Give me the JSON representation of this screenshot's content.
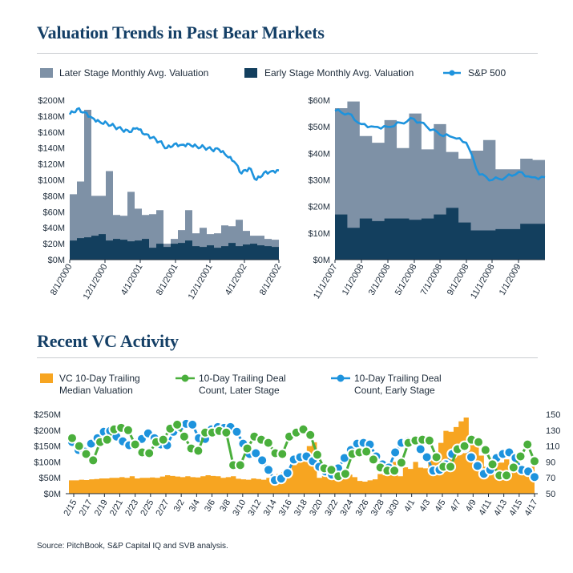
{
  "header": {
    "title1": "Valuation Trends in Past Bear Markets",
    "title2": "Recent VC Activity"
  },
  "legend1": {
    "later": "Later Stage Monthly Avg. Valuation",
    "early": "Early Stage Monthly Avg. Valuation",
    "sp": "S&P 500"
  },
  "legend2": {
    "median": "VC 10-Day Trailing Median Valuation",
    "later": "10-Day Trailing Deal Count, Later Stage",
    "early": "10-Day Trailing Deal Count, Early Stage"
  },
  "colors": {
    "later_stage": "#7e91a6",
    "early_stage": "#133f5e",
    "sp500": "#1d93dd",
    "vc_median": "#f7a521",
    "green": "#4aaf3c",
    "blue": "#1d93dd",
    "title": "#143f66"
  },
  "source": "Source: PitchBook, S&P Capital IQ and SVB analysis.",
  "chart_data": [
    {
      "type": "area",
      "title": "",
      "y_ticks": [
        "$0M",
        "$20M",
        "$40M",
        "$60M",
        "$80M",
        "$100M",
        "$120M",
        "$140M",
        "$160M",
        "$180M",
        "$200M"
      ],
      "ylim": [
        0,
        200
      ],
      "x_ticks": [
        "8/1/2000",
        "12/1/2000",
        "4/1/2001",
        "8/1/2001",
        "12/1/2001",
        "4/1/2002",
        "8/1/2002"
      ],
      "months": [
        "2000-08",
        "2000-09",
        "2000-10",
        "2000-11",
        "2000-12",
        "2001-01",
        "2001-02",
        "2001-03",
        "2001-04",
        "2001-05",
        "2001-06",
        "2001-07",
        "2001-08",
        "2001-09",
        "2001-10",
        "2001-11",
        "2001-12",
        "2002-01",
        "2002-02",
        "2002-03",
        "2002-04",
        "2002-05",
        "2002-06",
        "2002-07",
        "2002-08",
        "2002-09",
        "2002-10",
        "2002-11",
        "2002-12"
      ],
      "series": [
        {
          "name": "Later Stage Monthly Avg. Valuation",
          "values": [
            82,
            98,
            188,
            80,
            80,
            111,
            56,
            55,
            85,
            64,
            56,
            57,
            62,
            20,
            26,
            37,
            62,
            33,
            40,
            32,
            33,
            43,
            42,
            50,
            36,
            30,
            30,
            26,
            25
          ]
        },
        {
          "name": "Early Stage Monthly Avg. Valuation",
          "values": [
            24,
            27,
            28,
            30,
            32,
            24,
            26,
            25,
            23,
            24,
            26,
            15,
            20,
            16,
            20,
            21,
            24,
            17,
            16,
            18,
            15,
            17,
            21,
            17,
            19,
            20,
            18,
            17,
            16
          ]
        },
        {
          "name": "S&P 500",
          "values": [
            182,
            189,
            185,
            178,
            173,
            171,
            167,
            163,
            160,
            165,
            157,
            153,
            148,
            140,
            145,
            144,
            145,
            142,
            141,
            138,
            138,
            130,
            123,
            108,
            115,
            100,
            109,
            111,
            112
          ]
        }
      ]
    },
    {
      "type": "area",
      "title": "",
      "y_ticks": [
        "$0M",
        "$10M",
        "$20M",
        "$30M",
        "$40M",
        "$50M",
        "$60M"
      ],
      "ylim": [
        0,
        60
      ],
      "x_ticks": [
        "11/1/2007",
        "1/1/2008",
        "3/1/2008",
        "5/1/2008",
        "7/1/2008",
        "9/1/2008",
        "11/1/2008",
        "1/1/2009"
      ],
      "months": [
        "2007-11",
        "2007-12",
        "2008-01",
        "2008-02",
        "2008-03",
        "2008-04",
        "2008-05",
        "2008-06",
        "2008-07",
        "2008-08",
        "2008-09",
        "2008-10",
        "2008-11",
        "2008-12",
        "2009-01",
        "2009-02",
        "2009-03"
      ],
      "series": [
        {
          "name": "Later Stage Monthly Avg. Valuation",
          "values": [
            57,
            59.5,
            46.5,
            44,
            52.5,
            42,
            55,
            41.5,
            51,
            40.5,
            38,
            41,
            45,
            34,
            34,
            38,
            37.5
          ]
        },
        {
          "name": "Early Stage Monthly Avg. Valuation",
          "values": [
            17,
            12,
            15.5,
            14.5,
            15.5,
            15.5,
            15,
            15.5,
            17,
            19.5,
            14,
            11,
            11,
            11.5,
            11.5,
            13.5,
            13.5
          ]
        },
        {
          "name": "S&P 500",
          "values": [
            56,
            55,
            51,
            50,
            50,
            51.5,
            53,
            50,
            47,
            46,
            44,
            32,
            30,
            31,
            33,
            31,
            31
          ]
        }
      ]
    },
    {
      "type": "bar",
      "title": "",
      "x_ticks": [
        "2/15",
        "2/17",
        "2/19",
        "2/21",
        "2/23",
        "2/25",
        "2/27",
        "3/2",
        "3/4",
        "3/6",
        "3/8",
        "3/10",
        "3/12",
        "3/14",
        "3/16",
        "3/18",
        "3/20",
        "3/22",
        "3/24",
        "3/26",
        "3/28",
        "3/30",
        "4/1",
        "4/3",
        "4/5",
        "4/7",
        "4/9",
        "4/11",
        "4/13",
        "4/15",
        "4/17"
      ],
      "y_left_ticks": [
        "$0M",
        "$50M",
        "$100M",
        "$150M",
        "$200M",
        "$250M"
      ],
      "y_left_lim": [
        0,
        250
      ],
      "y_right_ticks": [
        "50",
        "70",
        "90",
        "110",
        "130",
        "150"
      ],
      "y_right_lim": [
        50,
        150
      ],
      "series": [
        {
          "name": "VC 10-Day Trailing Median Valuation",
          "axis": "left",
          "values": [
            42,
            42,
            44,
            43,
            45,
            46,
            48,
            48,
            50,
            50,
            52,
            50,
            55,
            48,
            50,
            50,
            51,
            50,
            54,
            58,
            56,
            54,
            52,
            55,
            52,
            51,
            55,
            58,
            56,
            55,
            50,
            52,
            55,
            47,
            45,
            44,
            48,
            46,
            44,
            50,
            52,
            62,
            68,
            75,
            90,
            98,
            102,
            150,
            162,
            50,
            70,
            75,
            78,
            60,
            55,
            60,
            52,
            40,
            38,
            42,
            45,
            62,
            58,
            65,
            100,
            55,
            83,
            78,
            100,
            82,
            80,
            105,
            110,
            160,
            198,
            195,
            210,
            228,
            240,
            175,
            155,
            120,
            85,
            95,
            100,
            98,
            108,
            90,
            85,
            75,
            70,
            85
          ]
        },
        {
          "name": "10-Day Trailing Deal Count, Later Stage",
          "axis": "right",
          "values": [
            120,
            110,
            100,
            92,
            115,
            118,
            131,
            133,
            130,
            112,
            102,
            101,
            115,
            118,
            132,
            137,
            122,
            107,
            104,
            127,
            127,
            129,
            127,
            86,
            86,
            107,
            122,
            118,
            114,
            101,
            100,
            122,
            127,
            131,
            124,
            99,
            82,
            80,
            72,
            75,
            100,
            102,
            103,
            93,
            83,
            79,
            79,
            89,
            114,
            117,
            118,
            117,
            96,
            84,
            84,
            106,
            110,
            118,
            115,
            105,
            87,
            73,
            73,
            83,
            97,
            112,
            91
          ]
        },
        {
          "name": "10-Day Trailing Deal Count, Early Stage",
          "axis": "right",
          "values": [
            115,
            105,
            103,
            113,
            120,
            128,
            129,
            122,
            116,
            111,
            114,
            119,
            126,
            120,
            112,
            111,
            128,
            134,
            138,
            137,
            120,
            119,
            131,
            134,
            133,
            134,
            128,
            113,
            100,
            101,
            92,
            80,
            67,
            69,
            76,
            93,
            96,
            97,
            91,
            84,
            78,
            74,
            82,
            95,
            105,
            113,
            114,
            112,
            97,
            87,
            83,
            102,
            114,
            116,
            117,
            106,
            96,
            79,
            80,
            87,
            100,
            105,
            108,
            96,
            85,
            75,
            80,
            95,
            100,
            102,
            95,
            80,
            78,
            71
          ]
        }
      ]
    }
  ]
}
